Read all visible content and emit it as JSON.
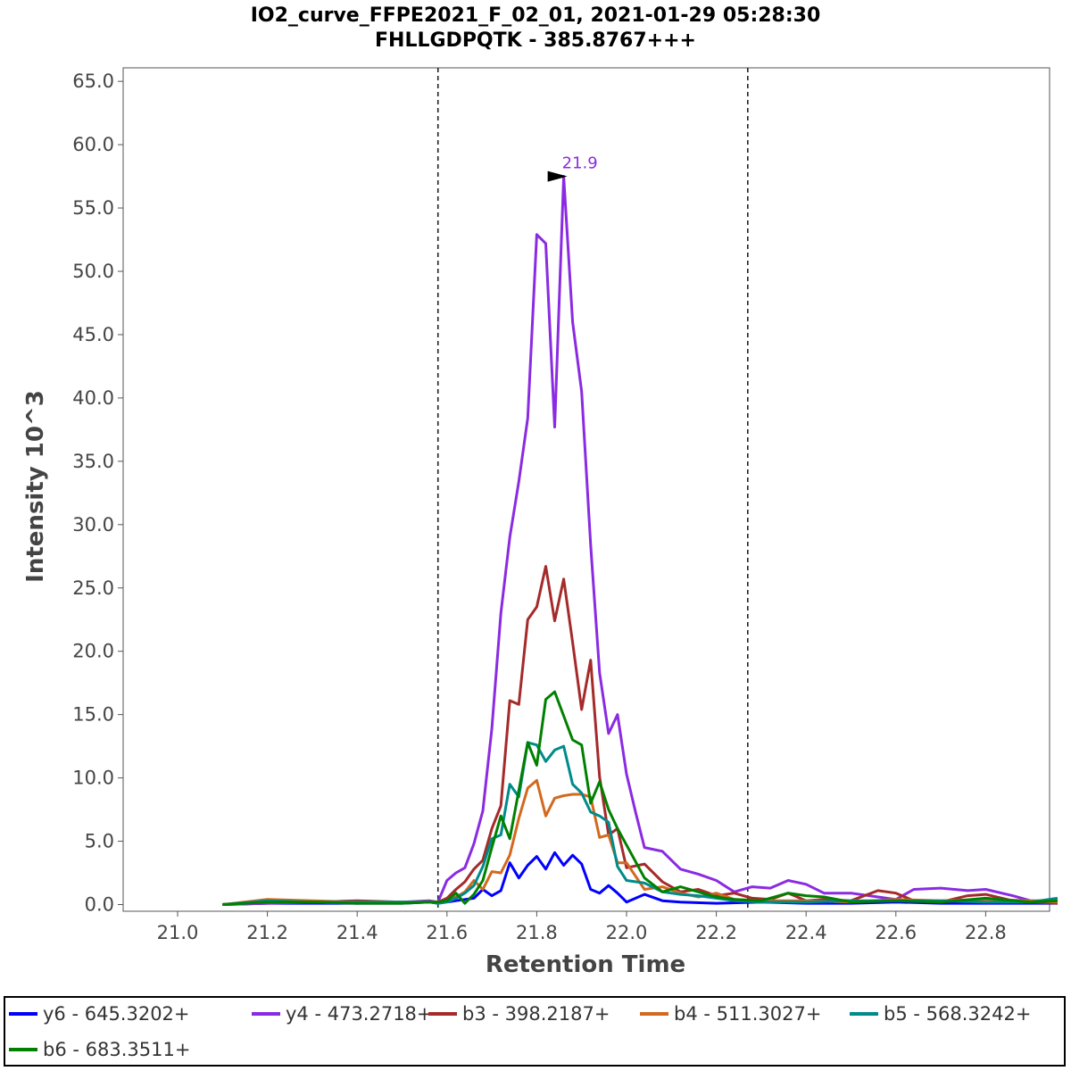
{
  "chart_data": {
    "type": "line",
    "title": "IO2_curve_FFPE2021_F_02_01, 2021-01-29 05:28:30",
    "subtitle": "FHLLGDPQTK - 385.8767+++",
    "xlabel": "Retention Time",
    "ylabel": "Intensity 10^3",
    "xlim": [
      20.9,
      22.96
    ],
    "ylim": [
      0,
      66
    ],
    "xticks": [
      "21.0",
      "21.2",
      "21.4",
      "21.6",
      "21.8",
      "22.0",
      "22.2",
      "22.4",
      "22.6",
      "22.8"
    ],
    "yticks": [
      "0.0",
      "5.0",
      "10.0",
      "15.0",
      "20.0",
      "25.0",
      "30.0",
      "35.0",
      "40.0",
      "45.0",
      "50.0",
      "55.0",
      "60.0",
      "65.0"
    ],
    "boundaries": [
      21.58,
      22.27
    ],
    "peak_annotation": {
      "x": 21.88,
      "y": 57.5,
      "label": "21.9",
      "color": "#8a2be2"
    },
    "grid": false,
    "legend_position": "bottom",
    "series": [
      {
        "name": "y6 - 645.3202+",
        "color": "#0000ff",
        "x": [
          21.1,
          21.2,
          21.3,
          21.4,
          21.5,
          21.56,
          21.58,
          21.6,
          21.62,
          21.64,
          21.66,
          21.68,
          21.7,
          21.72,
          21.74,
          21.76,
          21.78,
          21.8,
          21.82,
          21.84,
          21.86,
          21.88,
          21.9,
          21.92,
          21.94,
          21.96,
          21.98,
          22.0,
          22.04,
          22.08,
          22.12,
          22.2,
          22.3,
          22.4,
          22.5,
          22.6,
          22.7,
          22.8,
          22.9,
          22.96
        ],
        "y": [
          0,
          0.1,
          0.1,
          0.1,
          0.1,
          0.2,
          0.1,
          0.2,
          0.3,
          0.4,
          0.5,
          1.2,
          0.7,
          1.1,
          3.3,
          2.1,
          3.1,
          3.8,
          2.8,
          4.1,
          3.1,
          3.9,
          3.2,
          1.2,
          0.9,
          1.5,
          0.9,
          0.2,
          0.8,
          0.3,
          0.2,
          0.1,
          0.2,
          0.1,
          0.1,
          0.2,
          0.1,
          0.1,
          0.1,
          0.1
        ]
      },
      {
        "name": "y4 - 473.2718+",
        "color": "#8a2be2",
        "x": [
          21.1,
          21.2,
          21.3,
          21.4,
          21.5,
          21.56,
          21.58,
          21.6,
          21.62,
          21.64,
          21.66,
          21.68,
          21.7,
          21.72,
          21.74,
          21.76,
          21.78,
          21.8,
          21.82,
          21.84,
          21.86,
          21.88,
          21.9,
          21.92,
          21.94,
          21.96,
          21.98,
          22.0,
          22.02,
          22.04,
          22.08,
          22.12,
          22.16,
          22.2,
          22.24,
          22.28,
          22.32,
          22.36,
          22.4,
          22.44,
          22.5,
          22.56,
          22.6,
          22.64,
          22.7,
          22.76,
          22.8,
          22.86,
          22.9,
          22.96
        ],
        "y": [
          0,
          0.1,
          0.2,
          0.1,
          0.2,
          0.3,
          0.2,
          1.9,
          2.5,
          2.9,
          4.8,
          7.4,
          13.9,
          23.0,
          29.0,
          33.4,
          38.4,
          52.9,
          52.2,
          37.7,
          57.5,
          46.0,
          40.5,
          28.4,
          18.3,
          13.5,
          15.0,
          10.3,
          7.3,
          4.5,
          4.2,
          2.8,
          2.4,
          1.9,
          1.0,
          1.4,
          1.3,
          1.9,
          1.6,
          0.9,
          0.9,
          0.6,
          0.4,
          1.2,
          1.3,
          1.1,
          1.2,
          0.7,
          0.3,
          0.3
        ]
      },
      {
        "name": "b3 - 398.2187+",
        "color": "#a52a2a",
        "x": [
          21.1,
          21.2,
          21.3,
          21.4,
          21.5,
          21.56,
          21.58,
          21.6,
          21.62,
          21.64,
          21.66,
          21.68,
          21.7,
          21.72,
          21.74,
          21.76,
          21.78,
          21.8,
          21.82,
          21.84,
          21.86,
          21.88,
          21.9,
          21.92,
          21.94,
          21.96,
          21.98,
          22.0,
          22.04,
          22.08,
          22.12,
          22.16,
          22.2,
          22.24,
          22.28,
          22.32,
          22.36,
          22.4,
          22.44,
          22.5,
          22.56,
          22.6,
          22.64,
          22.7,
          22.76,
          22.8,
          22.86,
          22.9,
          22.96
        ],
        "y": [
          0,
          0.3,
          0.2,
          0.3,
          0.2,
          0.2,
          0.2,
          0.5,
          1.2,
          1.8,
          2.8,
          3.5,
          6.0,
          7.8,
          16.1,
          15.8,
          22.5,
          23.5,
          26.7,
          22.4,
          25.7,
          20.7,
          15.4,
          19.3,
          10.1,
          5.5,
          6.0,
          2.9,
          3.2,
          1.8,
          1.0,
          1.2,
          0.7,
          0.9,
          0.5,
          0.4,
          0.9,
          0.3,
          0.4,
          0.3,
          1.1,
          0.9,
          0.3,
          0.2,
          0.7,
          0.8,
          0.3,
          0.2,
          0.1
        ]
      },
      {
        "name": "b4 - 511.3027+",
        "color": "#d2691e",
        "x": [
          21.1,
          21.2,
          21.3,
          21.4,
          21.5,
          21.56,
          21.58,
          21.6,
          21.62,
          21.64,
          21.66,
          21.68,
          21.7,
          21.72,
          21.74,
          21.76,
          21.78,
          21.8,
          21.82,
          21.84,
          21.86,
          21.88,
          21.9,
          21.92,
          21.94,
          21.96,
          21.98,
          22.0,
          22.04,
          22.08,
          22.12,
          22.16,
          22.2,
          22.24,
          22.3,
          22.4,
          22.5,
          22.6,
          22.7,
          22.8,
          22.9,
          22.96
        ],
        "y": [
          0,
          0.4,
          0.3,
          0.2,
          0.2,
          0.2,
          0.2,
          0.3,
          0.6,
          1.0,
          1.9,
          1.2,
          2.6,
          2.5,
          3.9,
          6.8,
          9.2,
          9.8,
          7.0,
          8.4,
          8.6,
          8.7,
          8.7,
          8.5,
          5.3,
          5.5,
          3.3,
          3.3,
          1.2,
          1.4,
          0.9,
          0.6,
          0.9,
          0.4,
          0.3,
          0.3,
          0.2,
          0.4,
          0.3,
          0.4,
          0.3,
          0.2
        ]
      },
      {
        "name": "b5 - 568.3242+",
        "color": "#008b8b",
        "x": [
          21.1,
          21.2,
          21.3,
          21.4,
          21.5,
          21.56,
          21.58,
          21.6,
          21.62,
          21.64,
          21.66,
          21.68,
          21.7,
          21.72,
          21.74,
          21.76,
          21.78,
          21.8,
          21.82,
          21.84,
          21.86,
          21.88,
          21.9,
          21.92,
          21.94,
          21.96,
          21.98,
          22.0,
          22.04,
          22.08,
          22.12,
          22.16,
          22.2,
          22.24,
          22.3,
          22.4,
          22.5,
          22.6,
          22.7,
          22.8,
          22.9,
          22.96
        ],
        "y": [
          0,
          0.3,
          0.2,
          0.2,
          0.2,
          0.2,
          0.1,
          0.2,
          0.5,
          0.9,
          1.5,
          3.0,
          5.2,
          5.5,
          9.5,
          8.5,
          12.8,
          12.6,
          11.3,
          12.2,
          12.5,
          9.5,
          8.8,
          7.3,
          7.0,
          6.5,
          3.0,
          1.9,
          1.7,
          1.0,
          0.8,
          0.7,
          0.5,
          0.3,
          0.2,
          0.2,
          0.3,
          0.3,
          0.3,
          0.2,
          0.2,
          0.5
        ]
      },
      {
        "name": "b6 - 683.3511+",
        "color": "#008000",
        "x": [
          21.1,
          21.2,
          21.3,
          21.4,
          21.5,
          21.56,
          21.58,
          21.6,
          21.62,
          21.64,
          21.66,
          21.68,
          21.7,
          21.72,
          21.74,
          21.76,
          21.78,
          21.8,
          21.82,
          21.84,
          21.86,
          21.88,
          21.9,
          21.92,
          21.94,
          21.96,
          21.98,
          22.0,
          22.04,
          22.08,
          22.12,
          22.16,
          22.2,
          22.24,
          22.3,
          22.36,
          22.4,
          22.44,
          22.5,
          22.6,
          22.7,
          22.8,
          22.9,
          22.96
        ],
        "y": [
          0,
          0.2,
          0.2,
          0.1,
          0.1,
          0.2,
          0.2,
          0.3,
          0.9,
          0.1,
          0.8,
          1.9,
          4.5,
          7.0,
          5.2,
          9.0,
          12.8,
          11.0,
          16.2,
          16.8,
          14.9,
          13.0,
          12.6,
          8.0,
          9.7,
          7.5,
          6.0,
          4.7,
          2.1,
          1.0,
          1.4,
          1.0,
          0.6,
          0.4,
          0.3,
          0.9,
          0.7,
          0.6,
          0.2,
          0.3,
          0.2,
          0.5,
          0.2,
          0.3
        ]
      }
    ]
  }
}
